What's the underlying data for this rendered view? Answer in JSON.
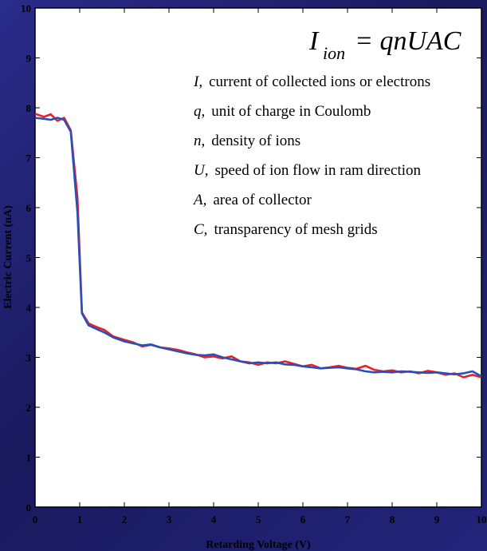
{
  "chart_data": {
    "type": "line",
    "xlabel": "Retarding Voltage (V)",
    "ylabel": "Electric Current (nA)",
    "xlim": [
      0,
      10
    ],
    "ylim": [
      0,
      10
    ],
    "x_ticks": [
      "0",
      "1",
      "2",
      "3",
      "4",
      "5",
      "6",
      "7",
      "8",
      "9",
      "10"
    ],
    "y_ticks": [
      "0",
      "1",
      "2",
      "3",
      "4",
      "5",
      "6",
      "7",
      "8",
      "9",
      "10"
    ],
    "grid": false,
    "series": [
      {
        "color": "#e8202a",
        "x": [
          0,
          0.2,
          0.35,
          0.5,
          0.65,
          0.8,
          0.95,
          1.05,
          1.2,
          1.35,
          1.55,
          1.75,
          2.0,
          2.2,
          2.4,
          2.6,
          2.8,
          3.0,
          3.2,
          3.4,
          3.6,
          3.8,
          4.0,
          4.2,
          4.4,
          4.6,
          4.8,
          5.0,
          5.2,
          5.4,
          5.6,
          5.8,
          6.0,
          6.2,
          6.4,
          6.6,
          6.8,
          7.0,
          7.2,
          7.4,
          7.6,
          7.8,
          8.0,
          8.2,
          8.4,
          8.6,
          8.8,
          9.0,
          9.2,
          9.4,
          9.6,
          9.8,
          10.0
        ],
        "values": [
          7.88,
          7.82,
          7.87,
          7.74,
          7.8,
          7.55,
          6.2,
          3.9,
          3.68,
          3.62,
          3.55,
          3.42,
          3.35,
          3.3,
          3.22,
          3.25,
          3.2,
          3.18,
          3.15,
          3.1,
          3.06,
          3.0,
          3.02,
          2.98,
          3.02,
          2.92,
          2.9,
          2.85,
          2.9,
          2.88,
          2.92,
          2.87,
          2.82,
          2.85,
          2.78,
          2.8,
          2.83,
          2.79,
          2.77,
          2.83,
          2.75,
          2.72,
          2.74,
          2.7,
          2.72,
          2.68,
          2.73,
          2.7,
          2.65,
          2.68,
          2.6,
          2.65,
          2.6
        ]
      },
      {
        "color": "#2a4fb8",
        "x": [
          0,
          0.2,
          0.35,
          0.5,
          0.65,
          0.8,
          0.95,
          1.05,
          1.2,
          1.35,
          1.55,
          1.75,
          2.0,
          2.2,
          2.4,
          2.6,
          2.8,
          3.0,
          3.2,
          3.4,
          3.6,
          3.8,
          4.0,
          4.2,
          4.4,
          4.6,
          4.8,
          5.0,
          5.2,
          5.4,
          5.6,
          5.8,
          6.0,
          6.2,
          6.4,
          6.6,
          6.8,
          7.0,
          7.2,
          7.4,
          7.6,
          7.8,
          8.0,
          8.2,
          8.4,
          8.6,
          8.8,
          9.0,
          9.2,
          9.4,
          9.6,
          9.8,
          10.0
        ],
        "values": [
          7.8,
          7.78,
          7.76,
          7.8,
          7.76,
          7.52,
          5.9,
          3.88,
          3.64,
          3.58,
          3.5,
          3.4,
          3.32,
          3.28,
          3.24,
          3.26,
          3.2,
          3.16,
          3.12,
          3.08,
          3.05,
          3.04,
          3.06,
          3.0,
          2.96,
          2.92,
          2.88,
          2.9,
          2.88,
          2.9,
          2.86,
          2.85,
          2.82,
          2.8,
          2.78,
          2.79,
          2.8,
          2.78,
          2.76,
          2.72,
          2.7,
          2.71,
          2.7,
          2.72,
          2.71,
          2.7,
          2.69,
          2.7,
          2.68,
          2.66,
          2.68,
          2.72,
          2.62
        ]
      }
    ],
    "annotations": {
      "formula_main": "I",
      "formula_sub": "ion",
      "formula_rest": "= qnUAC",
      "legend": [
        {
          "sym": "I,",
          "text": "current of collected ions or electrons"
        },
        {
          "sym": "q,",
          "text": "unit of charge in Coulomb"
        },
        {
          "sym": "n,",
          "text": "density of ions"
        },
        {
          "sym": "U,",
          "text": "speed of ion flow in ram direction"
        },
        {
          "sym": "A,",
          "text": "area of collector"
        },
        {
          "sym": "C,",
          "text": "transparency of mesh grids"
        }
      ]
    }
  }
}
